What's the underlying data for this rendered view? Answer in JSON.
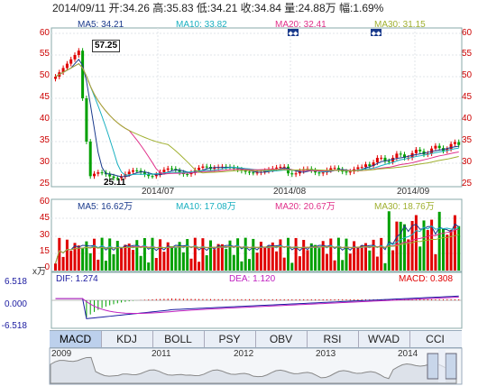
{
  "header": {
    "info": "2014/09/11 开:34.26 高:35.83 低:34.21 收:34.84 量:24.88万 幅:1.69%"
  },
  "price_panel": {
    "ma5": "MA5: 34.21",
    "ma10": "MA10: 33.82",
    "ma20": "MA20: 32.41",
    "ma30": "MA30: 31.15",
    "y_labels": [
      "60",
      "55",
      "50",
      "45",
      "40",
      "35",
      "30",
      "25"
    ],
    "x_labels": [
      "2014/07",
      "2014/08",
      "2014/09"
    ],
    "high_label": "57.25",
    "low_label": "25.11"
  },
  "volume_panel": {
    "ma5": "MA5: 16.62万",
    "ma10": "MA10: 17.08万",
    "ma20": "MA20: 20.67万",
    "ma30": "MA30: 18.76万",
    "y_labels": [
      "60",
      "45",
      "30",
      "15",
      "0"
    ],
    "unit": "x万"
  },
  "macd_panel": {
    "dif": "DIF: 1.274",
    "dea": "DEA: 1.120",
    "macd": "MACD: 0.308",
    "y_labels": [
      "6.518",
      "0.000",
      "-6.518"
    ]
  },
  "tabs": [
    "MACD",
    "KDJ",
    "BOLL",
    "PSY",
    "OBV",
    "RSI",
    "WVAD",
    "CCI"
  ],
  "active_tab": "MACD",
  "timeline": {
    "labels": [
      "2009",
      "2011",
      "2012",
      "2013",
      "2014"
    ]
  },
  "colors": {
    "ma5": "#1a3a8c",
    "ma10": "#1ab0c0",
    "ma20": "#e0308a",
    "ma30": "#a0b030",
    "up": "#e00000",
    "down": "#00a000",
    "dif": "#1a1aa0",
    "dea": "#c020c0"
  }
}
